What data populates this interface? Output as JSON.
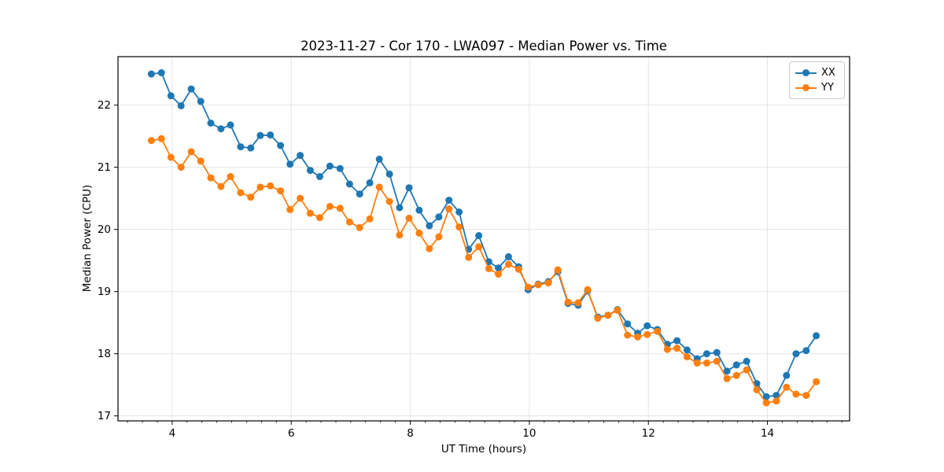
{
  "chart_data": {
    "type": "line",
    "title": "2023-11-27 - Cor 170 - LWA097 - Median Power vs. Time",
    "xlabel": "UT Time (hours)",
    "ylabel": "Median Power (CPU)",
    "xlim": [
      3.09,
      15.38
    ],
    "ylim": [
      16.92,
      22.78
    ],
    "xticks": [
      4,
      6,
      8,
      10,
      12,
      14
    ],
    "yticks": [
      17,
      18,
      19,
      20,
      21,
      22
    ],
    "x_minor_step": 0.25,
    "grid": true,
    "grid_color": "#e5e5e5",
    "legend_position": "upper right",
    "x": [
      3.65,
      3.82,
      3.98,
      4.15,
      4.32,
      4.48,
      4.65,
      4.82,
      4.98,
      5.15,
      5.32,
      5.48,
      5.65,
      5.82,
      5.98,
      6.15,
      6.32,
      6.48,
      6.65,
      6.82,
      6.98,
      7.15,
      7.32,
      7.48,
      7.65,
      7.82,
      7.98,
      8.15,
      8.32,
      8.48,
      8.65,
      8.82,
      8.98,
      9.15,
      9.32,
      9.48,
      9.65,
      9.82,
      9.98,
      10.15,
      10.32,
      10.48,
      10.65,
      10.82,
      10.98,
      11.15,
      11.32,
      11.48,
      11.65,
      11.82,
      11.98,
      12.15,
      12.32,
      12.48,
      12.65,
      12.82,
      12.98,
      13.15,
      13.32,
      13.48,
      13.65,
      13.82,
      13.98,
      14.15,
      14.32,
      14.48,
      14.65,
      14.82
    ],
    "series": [
      {
        "name": "XX",
        "color": "#1f77b4",
        "values": [
          22.5,
          22.52,
          22.15,
          21.99,
          22.26,
          22.06,
          21.71,
          21.62,
          21.68,
          21.33,
          21.31,
          21.51,
          21.52,
          21.35,
          21.05,
          21.19,
          20.95,
          20.85,
          21.02,
          20.98,
          20.73,
          20.57,
          20.75,
          21.13,
          20.89,
          20.35,
          20.67,
          20.31,
          20.06,
          20.2,
          20.47,
          20.28,
          19.68,
          19.9,
          19.48,
          19.38,
          19.56,
          19.4,
          19.03,
          19.12,
          19.16,
          19.32,
          18.81,
          18.78,
          19.01,
          18.59,
          18.62,
          18.71,
          18.48,
          18.33,
          18.45,
          18.39,
          18.15,
          18.21,
          18.06,
          17.92,
          18.0,
          18.02,
          17.72,
          17.82,
          17.88,
          17.52,
          17.31,
          17.33,
          17.65,
          18.0,
          18.05,
          18.29
        ]
      },
      {
        "name": "YY",
        "color": "#ff7f0e",
        "values": [
          21.43,
          21.46,
          21.16,
          21.0,
          21.25,
          21.1,
          20.83,
          20.69,
          20.85,
          20.59,
          20.52,
          20.68,
          20.7,
          20.62,
          20.32,
          20.5,
          20.26,
          20.19,
          20.37,
          20.34,
          20.12,
          20.03,
          20.17,
          20.68,
          20.45,
          19.91,
          20.18,
          19.94,
          19.69,
          19.88,
          20.33,
          20.04,
          19.55,
          19.72,
          19.37,
          19.28,
          19.44,
          19.36,
          19.07,
          19.11,
          19.14,
          19.35,
          18.83,
          18.82,
          19.03,
          18.57,
          18.62,
          18.7,
          18.3,
          18.27,
          18.31,
          18.36,
          18.07,
          18.09,
          17.95,
          17.85,
          17.85,
          17.88,
          17.6,
          17.65,
          17.74,
          17.42,
          17.21,
          17.24,
          17.46,
          17.35,
          17.33,
          17.55
        ]
      }
    ]
  }
}
